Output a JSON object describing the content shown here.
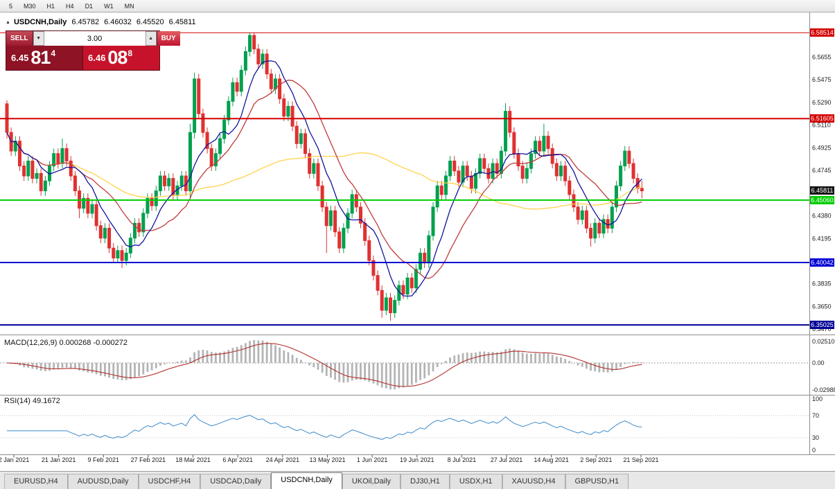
{
  "toolbar": {
    "timeframes": [
      "5",
      "M30",
      "H1",
      "H4",
      "D1",
      "W1",
      "MN"
    ]
  },
  "symbol_header": {
    "collapse_icon": "▲",
    "symbol": "USDCNH,Daily",
    "open": "6.45782",
    "high": "6.46032",
    "low": "6.45520",
    "close": "6.45811"
  },
  "trade_panel": {
    "sell_label": "SELL",
    "buy_label": "BUY",
    "volume": "3.00",
    "vol_down_icon": "▼",
    "vol_up_icon": "▲",
    "sell_price": {
      "prefix": "6.45",
      "big": "81",
      "sup": "4"
    },
    "buy_price": {
      "prefix": "6.46",
      "big": "08",
      "sup": "8"
    }
  },
  "price_axis_ticks": [
    "6.5655",
    "6.5475",
    "6.5290",
    "6.5110",
    "6.4925",
    "6.4745",
    "6.4380",
    "6.4195",
    "6.3835",
    "6.3650",
    "6.3470"
  ],
  "levels": [
    {
      "price": 6.58514,
      "label": "6.58514",
      "color": "#d40000",
      "width": 1
    },
    {
      "price": 6.51605,
      "label": "6.51605",
      "color": "#d40000",
      "width": 2
    },
    {
      "price": 6.4506,
      "label": "6.45060",
      "color": "#00cc00",
      "width": 2
    },
    {
      "price": 6.40042,
      "label": "6.40042",
      "color": "#0000d4",
      "width": 2
    },
    {
      "price": 6.35025,
      "label": "6.35025",
      "color": "#000096",
      "width": 2
    }
  ],
  "current_price": {
    "price": 6.45811,
    "label": "6.45811",
    "badge_color": "#141414"
  },
  "macd_panel": {
    "title": "MACD(12,26,9)",
    "value_main": "0.000268",
    "value_signal": "-0.000272",
    "axis_labels": [
      "0.02510",
      "0.00",
      "-0.02988"
    ]
  },
  "rsi_panel": {
    "title": "RSI(14)",
    "value": "49.1672",
    "axis_labels": [
      100,
      70,
      30,
      0
    ]
  },
  "date_axis": [
    "2 Jan 2021",
    "21 Jan 2021",
    "9 Feb 2021",
    "27 Feb 2021",
    "18 Mar 2021",
    "6 Apr 2021",
    "24 Apr 2021",
    "13 May 2021",
    "1 Jun 2021",
    "19 Jun 2021",
    "8 Jul 2021",
    "27 Jul 2021",
    "14 Aug 2021",
    "2 Sep 2021",
    "21 Sep 2021"
  ],
  "tabs": {
    "items": [
      "EURUSD,H4",
      "AUDUSD,Daily",
      "USDCHF,H4",
      "USDCAD,Daily",
      "USDCNH,Daily",
      "UKOil,Daily",
      "DJ30,H1",
      "USDX,H1",
      "XAUUSD,H4",
      "GBPUSD,H1"
    ],
    "active_index": 4
  },
  "colors": {
    "bull": "#00a04e",
    "bear": "#e03131",
    "macd_hist": "#b4b4b4",
    "macd_signal": "#b03030",
    "rsi_line": "#4f94cd",
    "axis_text": "#1a1a1a",
    "separator": "#8c8c8c"
  },
  "chart_data": {
    "type": "candlestick",
    "title": "USDCNH,Daily",
    "symbol": "USDCNH",
    "timeframe": "Daily",
    "ylim": [
      6.3425,
      6.5975
    ],
    "x_labels": [
      "2 Jan 2021",
      "21 Jan 2021",
      "9 Feb 2021",
      "27 Feb 2021",
      "18 Mar 2021",
      "6 Apr 2021",
      "24 Apr 2021",
      "13 May 2021",
      "1 Jun 2021",
      "19 Jun 2021",
      "8 Jul 2021",
      "27 Jul 2021",
      "14 Aug 2021",
      "2 Sep 2021",
      "21 Sep 2021"
    ],
    "horizontal_lines": [
      6.58514,
      6.51605,
      6.4506,
      6.40042,
      6.35025
    ],
    "current_bar": {
      "open": 6.45782,
      "high": 6.46032,
      "low": 6.4552,
      "close": 6.45811
    },
    "overlays": [
      {
        "name": "ma-fast",
        "type": "sma",
        "period": 8,
        "color": "#12129a"
      },
      {
        "name": "ma-mid",
        "type": "sma",
        "period": 16,
        "color": "#c03a3a"
      },
      {
        "name": "ma-slow",
        "type": "sma",
        "period": 55,
        "color": "#ffd24a"
      }
    ],
    "indicators": [
      {
        "name": "MACD",
        "params": [
          12,
          26,
          9
        ],
        "current": [
          0.000268,
          -0.000272
        ]
      },
      {
        "name": "RSI",
        "params": [
          14
        ],
        "current": 49.1672
      }
    ],
    "candles": [
      [
        6.528,
        6.531,
        6.5,
        6.505
      ],
      [
        6.505,
        6.509,
        6.486,
        6.49
      ],
      [
        6.49,
        6.502,
        6.486,
        6.498
      ],
      [
        6.498,
        6.502,
        6.474,
        6.478
      ],
      [
        6.478,
        6.482,
        6.466,
        6.47
      ],
      [
        6.47,
        6.486,
        6.466,
        6.482
      ],
      [
        6.482,
        6.486,
        6.464,
        6.468
      ],
      [
        6.468,
        6.476,
        6.464,
        6.472
      ],
      [
        6.472,
        6.476,
        6.454,
        6.458
      ],
      [
        6.458,
        6.47,
        6.454,
        6.466
      ],
      [
        6.466,
        6.482,
        6.462,
        6.478
      ],
      [
        6.478,
        6.492,
        6.474,
        6.488
      ],
      [
        6.488,
        6.492,
        6.476,
        6.48
      ],
      [
        6.48,
        6.5,
        6.476,
        6.492
      ],
      [
        6.492,
        6.496,
        6.478,
        6.482
      ],
      [
        6.482,
        6.486,
        6.466,
        6.47
      ],
      [
        6.47,
        6.474,
        6.454,
        6.458
      ],
      [
        6.458,
        6.462,
        6.436,
        6.444
      ],
      [
        6.444,
        6.456,
        6.44,
        6.452
      ],
      [
        6.452,
        6.456,
        6.436,
        6.44
      ],
      [
        6.44,
        6.451,
        6.436,
        6.447
      ],
      [
        6.447,
        6.451,
        6.426,
        6.43
      ],
      [
        6.43,
        6.434,
        6.416,
        6.42
      ],
      [
        6.42,
        6.432,
        6.416,
        6.428
      ],
      [
        6.428,
        6.432,
        6.408,
        6.412
      ],
      [
        6.412,
        6.416,
        6.4,
        6.404
      ],
      [
        6.404,
        6.414,
        6.4,
        6.41
      ],
      [
        6.41,
        6.414,
        6.396,
        6.402
      ],
      [
        6.402,
        6.412,
        6.398,
        6.408
      ],
      [
        6.408,
        6.424,
        6.404,
        6.42
      ],
      [
        6.42,
        6.436,
        6.416,
        6.432
      ],
      [
        6.432,
        6.436,
        6.421,
        6.425
      ],
      [
        6.425,
        6.444,
        6.421,
        6.44
      ],
      [
        6.44,
        6.456,
        6.436,
        6.452
      ],
      [
        6.452,
        6.456,
        6.442,
        6.446
      ],
      [
        6.446,
        6.462,
        6.442,
        6.458
      ],
      [
        6.458,
        6.474,
        6.454,
        6.47
      ],
      [
        6.47,
        6.474,
        6.458,
        6.462
      ],
      [
        6.462,
        6.472,
        6.458,
        6.468
      ],
      [
        6.468,
        6.472,
        6.451,
        6.455
      ],
      [
        6.455,
        6.466,
        6.451,
        6.462
      ],
      [
        6.462,
        6.474,
        6.458,
        6.47
      ],
      [
        6.47,
        6.474,
        6.454,
        6.458
      ],
      [
        6.458,
        6.512,
        6.452,
        6.505
      ],
      [
        6.505,
        6.553,
        6.5,
        6.548
      ],
      [
        6.548,
        6.552,
        6.516,
        6.52
      ],
      [
        6.52,
        6.524,
        6.501,
        6.505
      ],
      [
        6.505,
        6.509,
        6.488,
        6.492
      ],
      [
        6.492,
        6.496,
        6.474,
        6.478
      ],
      [
        6.478,
        6.492,
        6.474,
        6.488
      ],
      [
        6.488,
        6.504,
        6.484,
        6.5
      ],
      [
        6.5,
        6.519,
        6.496,
        6.515
      ],
      [
        6.515,
        6.534,
        6.511,
        6.53
      ],
      [
        6.53,
        6.549,
        6.526,
        6.545
      ],
      [
        6.545,
        6.549,
        6.534,
        6.538
      ],
      [
        6.538,
        6.559,
        6.534,
        6.555
      ],
      [
        6.555,
        6.574,
        6.551,
        6.57
      ],
      [
        6.57,
        6.5851,
        6.566,
        6.583
      ],
      [
        6.583,
        6.585,
        6.568,
        6.572
      ],
      [
        6.572,
        6.576,
        6.556,
        6.56
      ],
      [
        6.56,
        6.572,
        6.556,
        6.568
      ],
      [
        6.568,
        6.572,
        6.548,
        6.552
      ],
      [
        6.552,
        6.556,
        6.536,
        6.54
      ],
      [
        6.54,
        6.552,
        6.536,
        6.548
      ],
      [
        6.548,
        6.552,
        6.528,
        6.532
      ],
      [
        6.532,
        6.536,
        6.514,
        6.518
      ],
      [
        6.518,
        6.53,
        6.514,
        6.526
      ],
      [
        6.526,
        6.53,
        6.506,
        6.51
      ],
      [
        6.51,
        6.514,
        6.492,
        6.496
      ],
      [
        6.496,
        6.508,
        6.492,
        6.504
      ],
      [
        6.504,
        6.508,
        6.484,
        6.488
      ],
      [
        6.488,
        6.492,
        6.468,
        6.472
      ],
      [
        6.472,
        6.484,
        6.468,
        6.48
      ],
      [
        6.48,
        6.484,
        6.458,
        6.462
      ],
      [
        6.462,
        6.466,
        6.441,
        6.445
      ],
      [
        6.445,
        6.449,
        6.408,
        6.43
      ],
      [
        6.43,
        6.446,
        6.426,
        6.442
      ],
      [
        6.442,
        6.446,
        6.421,
        6.425
      ],
      [
        6.425,
        6.429,
        6.408,
        6.412
      ],
      [
        6.412,
        6.432,
        6.408,
        6.428
      ],
      [
        6.428,
        6.444,
        6.424,
        6.44
      ],
      [
        6.44,
        6.459,
        6.436,
        6.455
      ],
      [
        6.455,
        6.459,
        6.441,
        6.445
      ],
      [
        6.445,
        6.449,
        6.428,
        6.432
      ],
      [
        6.432,
        6.436,
        6.414,
        6.418
      ],
      [
        6.418,
        6.422,
        6.398,
        6.402
      ],
      [
        6.402,
        6.406,
        6.386,
        6.39
      ],
      [
        6.39,
        6.394,
        6.374,
        6.378
      ],
      [
        6.378,
        6.382,
        6.356,
        6.362
      ],
      [
        6.362,
        6.376,
        6.358,
        6.372
      ],
      [
        6.372,
        6.376,
        6.3535,
        6.36
      ],
      [
        6.36,
        6.374,
        6.356,
        6.37
      ],
      [
        6.37,
        6.386,
        6.366,
        6.382
      ],
      [
        6.382,
        6.386,
        6.371,
        6.375
      ],
      [
        6.375,
        6.392,
        6.371,
        6.388
      ],
      [
        6.388,
        6.392,
        6.376,
        6.38
      ],
      [
        6.38,
        6.399,
        6.376,
        6.395
      ],
      [
        6.395,
        6.412,
        6.391,
        6.408
      ],
      [
        6.408,
        6.412,
        6.396,
        6.4
      ],
      [
        6.4,
        6.426,
        6.396,
        6.422
      ],
      [
        6.422,
        6.449,
        6.418,
        6.445
      ],
      [
        6.445,
        6.466,
        6.441,
        6.462
      ],
      [
        6.462,
        6.466,
        6.451,
        6.455
      ],
      [
        6.455,
        6.474,
        6.451,
        6.47
      ],
      [
        6.47,
        6.486,
        6.466,
        6.482
      ],
      [
        6.482,
        6.486,
        6.47,
        6.474
      ],
      [
        6.474,
        6.478,
        6.461,
        6.465
      ],
      [
        6.465,
        6.482,
        6.461,
        6.478
      ],
      [
        6.478,
        6.482,
        6.466,
        6.47
      ],
      [
        6.47,
        6.474,
        6.456,
        6.46
      ],
      [
        6.46,
        6.476,
        6.456,
        6.472
      ],
      [
        6.472,
        6.488,
        6.468,
        6.484
      ],
      [
        6.484,
        6.488,
        6.472,
        6.476
      ],
      [
        6.476,
        6.48,
        6.464,
        6.468
      ],
      [
        6.468,
        6.484,
        6.464,
        6.48
      ],
      [
        6.48,
        6.484,
        6.468,
        6.472
      ],
      [
        6.472,
        6.494,
        6.468,
        6.49
      ],
      [
        6.49,
        6.5285,
        6.486,
        6.522
      ],
      [
        6.522,
        6.526,
        6.501,
        6.505
      ],
      [
        6.505,
        6.509,
        6.484,
        6.488
      ],
      [
        6.488,
        6.492,
        6.474,
        6.478
      ],
      [
        6.478,
        6.482,
        6.464,
        6.468
      ],
      [
        6.468,
        6.48,
        6.464,
        6.476
      ],
      [
        6.476,
        6.492,
        6.472,
        6.488
      ],
      [
        6.488,
        6.502,
        6.484,
        6.498
      ],
      [
        6.498,
        6.502,
        6.486,
        6.49
      ],
      [
        6.49,
        6.512,
        6.486,
        6.502
      ],
      [
        6.502,
        6.506,
        6.488,
        6.492
      ],
      [
        6.492,
        6.496,
        6.476,
        6.48
      ],
      [
        6.48,
        6.484,
        6.466,
        6.47
      ],
      [
        6.47,
        6.482,
        6.466,
        6.478
      ],
      [
        6.478,
        6.482,
        6.462,
        6.466
      ],
      [
        6.466,
        6.47,
        6.451,
        6.455
      ],
      [
        6.455,
        6.459,
        6.441,
        6.445
      ],
      [
        6.445,
        6.449,
        6.431,
        6.435
      ],
      [
        6.435,
        6.446,
        6.431,
        6.442
      ],
      [
        6.442,
        6.446,
        6.424,
        6.428
      ],
      [
        6.428,
        6.432,
        6.413,
        6.42
      ],
      [
        6.42,
        6.436,
        6.416,
        6.432
      ],
      [
        6.432,
        6.436,
        6.42,
        6.424
      ],
      [
        6.424,
        6.439,
        6.42,
        6.435
      ],
      [
        6.435,
        6.439,
        6.424,
        6.428
      ],
      [
        6.428,
        6.449,
        6.424,
        6.445
      ],
      [
        6.445,
        6.466,
        6.441,
        6.462
      ],
      [
        6.462,
        6.482,
        6.458,
        6.478
      ],
      [
        6.478,
        6.494,
        6.474,
        6.49
      ],
      [
        6.49,
        6.494,
        6.476,
        6.48
      ],
      [
        6.48,
        6.484,
        6.464,
        6.468
      ],
      [
        6.468,
        6.472,
        6.456,
        6.46
      ],
      [
        6.46,
        6.466,
        6.452,
        6.458
      ]
    ]
  }
}
